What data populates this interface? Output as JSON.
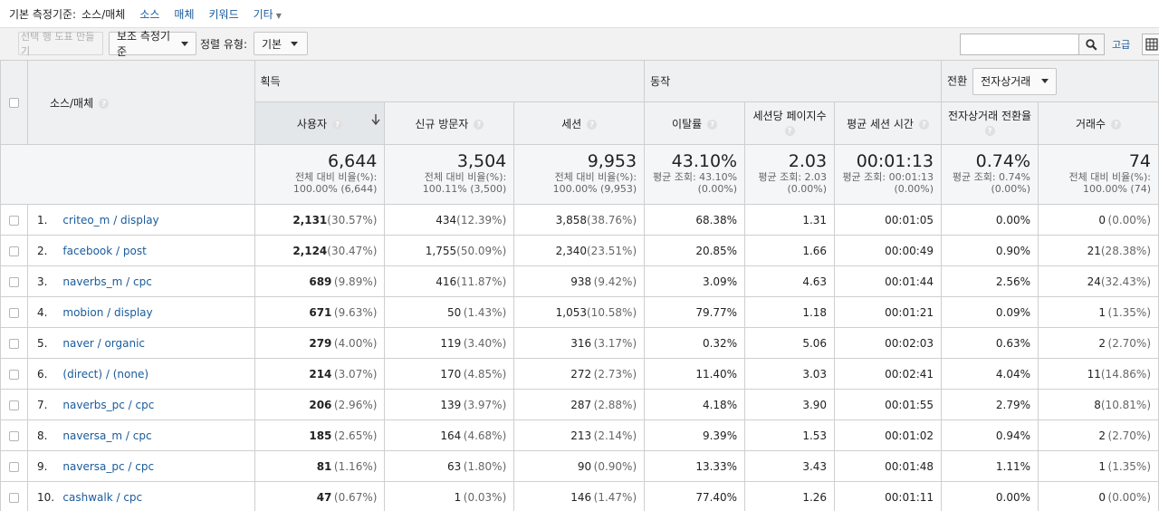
{
  "dimension_bar": {
    "label": "기본 측정기준:",
    "current": "소스/매체",
    "links": [
      "소스",
      "매체",
      "키워드",
      "기타"
    ]
  },
  "toolbar": {
    "make_chart_label": "선택 행 도표 만들기",
    "secondary_dim_label": "보조 측정기준",
    "sort_label": "정렬 유형:",
    "sort_value": "기본",
    "search_value": "",
    "advanced_label": "고급"
  },
  "groups": {
    "acquisition": "획득",
    "behavior": "동작",
    "conversion": "전환",
    "conversion_select": "전자상거래"
  },
  "headers": {
    "dimension": "소스/매체",
    "users": "사용자",
    "new_users": "신규 방문자",
    "sessions": "세션",
    "bounce_rate": "이탈률",
    "pages_per_session": "세션당 페이지수",
    "avg_session_duration": "평균 세션 시간",
    "ecom_conversion_rate": "전자상거래 전환율",
    "transactions": "거래수"
  },
  "totals": [
    {
      "value": "6,644",
      "l1": "전체 대비 비율(%):",
      "l2": "100.00% (6,644)"
    },
    {
      "value": "3,504",
      "l1": "전체 대비 비율(%):",
      "l2": "100.11% (3,500)"
    },
    {
      "value": "9,953",
      "l1": "전체 대비 비율(%):",
      "l2": "100.00% (9,953)"
    },
    {
      "value": "43.10%",
      "l1": "평균 조회: 43.10%",
      "l2": "(0.00%)"
    },
    {
      "value": "2.03",
      "l1": "평균 조회: 2.03",
      "l2": "(0.00%)"
    },
    {
      "value": "00:01:13",
      "l1": "평균 조회: 00:01:13",
      "l2": "(0.00%)"
    },
    {
      "value": "0.74%",
      "l1": "평균 조회: 0.74%",
      "l2": "(0.00%)"
    },
    {
      "value": "74",
      "l1": "전체 대비 비율(%):",
      "l2": "100.00% (74)"
    }
  ],
  "rows": [
    {
      "rank": "1.",
      "name": "criteo_m / display",
      "users": "2,131",
      "users_pct": "(30.57%)",
      "new_users": "434",
      "new_users_pct": "(12.39%)",
      "sessions": "3,858",
      "sessions_pct": "(38.76%)",
      "bounce": "68.38%",
      "pps": "1.31",
      "dur": "00:01:05",
      "conv": "0.00%",
      "tx": "0",
      "tx_pct": "(0.00%)"
    },
    {
      "rank": "2.",
      "name": "facebook / post",
      "users": "2,124",
      "users_pct": "(30.47%)",
      "new_users": "1,755",
      "new_users_pct": "(50.09%)",
      "sessions": "2,340",
      "sessions_pct": "(23.51%)",
      "bounce": "20.85%",
      "pps": "1.66",
      "dur": "00:00:49",
      "conv": "0.90%",
      "tx": "21",
      "tx_pct": "(28.38%)"
    },
    {
      "rank": "3.",
      "name": "naverbs_m / cpc",
      "users": "689",
      "users_pct": "(9.89%)",
      "new_users": "416",
      "new_users_pct": "(11.87%)",
      "sessions": "938",
      "sessions_pct": "(9.42%)",
      "bounce": "3.09%",
      "pps": "4.63",
      "dur": "00:01:44",
      "conv": "2.56%",
      "tx": "24",
      "tx_pct": "(32.43%)"
    },
    {
      "rank": "4.",
      "name": "mobion / display",
      "users": "671",
      "users_pct": "(9.63%)",
      "new_users": "50",
      "new_users_pct": "(1.43%)",
      "sessions": "1,053",
      "sessions_pct": "(10.58%)",
      "bounce": "79.77%",
      "pps": "1.18",
      "dur": "00:01:21",
      "conv": "0.09%",
      "tx": "1",
      "tx_pct": "(1.35%)"
    },
    {
      "rank": "5.",
      "name": "naver / organic",
      "users": "279",
      "users_pct": "(4.00%)",
      "new_users": "119",
      "new_users_pct": "(3.40%)",
      "sessions": "316",
      "sessions_pct": "(3.17%)",
      "bounce": "0.32%",
      "pps": "5.06",
      "dur": "00:02:03",
      "conv": "0.63%",
      "tx": "2",
      "tx_pct": "(2.70%)"
    },
    {
      "rank": "6.",
      "name": "(direct) / (none)",
      "users": "214",
      "users_pct": "(3.07%)",
      "new_users": "170",
      "new_users_pct": "(4.85%)",
      "sessions": "272",
      "sessions_pct": "(2.73%)",
      "bounce": "11.40%",
      "pps": "3.03",
      "dur": "00:02:41",
      "conv": "4.04%",
      "tx": "11",
      "tx_pct": "(14.86%)"
    },
    {
      "rank": "7.",
      "name": "naverbs_pc / cpc",
      "users": "206",
      "users_pct": "(2.96%)",
      "new_users": "139",
      "new_users_pct": "(3.97%)",
      "sessions": "287",
      "sessions_pct": "(2.88%)",
      "bounce": "4.18%",
      "pps": "3.90",
      "dur": "00:01:55",
      "conv": "2.79%",
      "tx": "8",
      "tx_pct": "(10.81%)"
    },
    {
      "rank": "8.",
      "name": "naversa_m / cpc",
      "users": "185",
      "users_pct": "(2.65%)",
      "new_users": "164",
      "new_users_pct": "(4.68%)",
      "sessions": "213",
      "sessions_pct": "(2.14%)",
      "bounce": "9.39%",
      "pps": "1.53",
      "dur": "00:01:02",
      "conv": "0.94%",
      "tx": "2",
      "tx_pct": "(2.70%)"
    },
    {
      "rank": "9.",
      "name": "naversa_pc / cpc",
      "users": "81",
      "users_pct": "(1.16%)",
      "new_users": "63",
      "new_users_pct": "(1.80%)",
      "sessions": "90",
      "sessions_pct": "(0.90%)",
      "bounce": "13.33%",
      "pps": "3.43",
      "dur": "00:01:48",
      "conv": "1.11%",
      "tx": "1",
      "tx_pct": "(1.35%)"
    },
    {
      "rank": "10.",
      "name": "cashwalk / cpc",
      "users": "47",
      "users_pct": "(0.67%)",
      "new_users": "1",
      "new_users_pct": "(0.03%)",
      "sessions": "146",
      "sessions_pct": "(1.47%)",
      "bounce": "77.40%",
      "pps": "1.26",
      "dur": "00:01:11",
      "conv": "0.00%",
      "tx": "0",
      "tx_pct": "(0.00%)"
    }
  ]
}
